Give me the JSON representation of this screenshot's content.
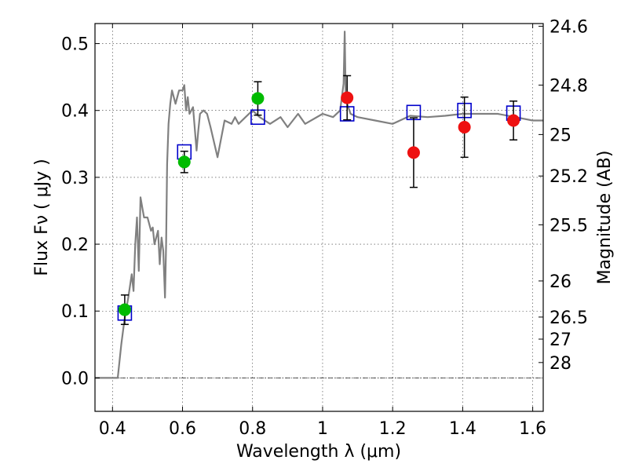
{
  "chart_data": {
    "type": "scatter",
    "title": "",
    "xlabel": "Wavelength  λ (μm)",
    "ylabel": "Flux  Fν  ( μJy )",
    "ylabel_right": "Magnitude (AB)",
    "xlim": [
      0.35,
      1.63
    ],
    "ylim": [
      -0.05,
      0.53
    ],
    "grid": true,
    "x_ticks": [
      0.4,
      0.6,
      0.8,
      1.0,
      1.2,
      1.4,
      1.6
    ],
    "x_tick_labels": [
      "0.4",
      "0.6",
      "0.8",
      "1",
      "1.2",
      "1.4",
      "1.6"
    ],
    "y_ticks": [
      0.0,
      0.1,
      0.2,
      0.3,
      0.4,
      0.5
    ],
    "y_tick_labels": [
      "0.0",
      "0.1",
      "0.2",
      "0.3",
      "0.4",
      "0.5"
    ],
    "right_ticks": [
      {
        "label": "24.6",
        "flux": 0.526
      },
      {
        "label": "24.8",
        "flux": 0.438
      },
      {
        "label": "25",
        "flux": 0.364
      },
      {
        "label": "25.2",
        "flux": 0.302
      },
      {
        "label": "25.5",
        "flux": 0.229
      },
      {
        "label": "26",
        "flux": 0.145
      },
      {
        "label": "26.5",
        "flux": 0.091
      },
      {
        "label": "27",
        "flux": 0.058
      },
      {
        "label": "28",
        "flux": 0.023
      }
    ],
    "series": [
      {
        "kind": "template-spectrum",
        "color": "#808080",
        "x": [
          0.35,
          0.415,
          0.425,
          0.435,
          0.445,
          0.455,
          0.46,
          0.465,
          0.47,
          0.475,
          0.48,
          0.485,
          0.49,
          0.5,
          0.51,
          0.515,
          0.52,
          0.53,
          0.535,
          0.54,
          0.545,
          0.55,
          0.553,
          0.556,
          0.56,
          0.565,
          0.57,
          0.58,
          0.59,
          0.6,
          0.605,
          0.61,
          0.615,
          0.62,
          0.63,
          0.64,
          0.645,
          0.65,
          0.66,
          0.67,
          0.68,
          0.7,
          0.72,
          0.74,
          0.75,
          0.76,
          0.78,
          0.8,
          0.82,
          0.85,
          0.88,
          0.9,
          0.93,
          0.95,
          1.0,
          1.03,
          1.05,
          1.06,
          1.063,
          1.066,
          1.07,
          1.08,
          1.1,
          1.15,
          1.2,
          1.25,
          1.3,
          1.35,
          1.4,
          1.45,
          1.5,
          1.55,
          1.6,
          1.63
        ],
        "y": [
          0.0,
          0.0,
          0.05,
          0.09,
          0.12,
          0.155,
          0.13,
          0.2,
          0.24,
          0.16,
          0.27,
          0.255,
          0.24,
          0.24,
          0.22,
          0.225,
          0.2,
          0.22,
          0.17,
          0.21,
          0.19,
          0.12,
          0.2,
          0.32,
          0.38,
          0.41,
          0.43,
          0.41,
          0.43,
          0.43,
          0.438,
          0.4,
          0.42,
          0.395,
          0.405,
          0.34,
          0.37,
          0.395,
          0.4,
          0.395,
          0.375,
          0.33,
          0.385,
          0.38,
          0.39,
          0.38,
          0.39,
          0.4,
          0.39,
          0.38,
          0.39,
          0.375,
          0.395,
          0.38,
          0.395,
          0.39,
          0.4,
          0.44,
          0.518,
          0.42,
          0.41,
          0.395,
          0.39,
          0.385,
          0.38,
          0.392,
          0.39,
          0.392,
          0.395,
          0.395,
          0.395,
          0.39,
          0.385,
          0.385
        ]
      },
      {
        "kind": "model-band-flux",
        "marker": "open-square",
        "color": "#0000cc",
        "x": [
          0.435,
          0.605,
          0.815,
          1.07,
          1.26,
          1.405,
          1.545
        ],
        "y": [
          0.097,
          0.338,
          0.39,
          0.395,
          0.397,
          0.4,
          0.396
        ]
      },
      {
        "kind": "observed-detection",
        "marker": "filled-circle",
        "color": "#00bb00",
        "x": [
          0.435,
          0.605,
          0.815
        ],
        "y": [
          0.102,
          0.323,
          0.418
        ],
        "yerr": [
          0.022,
          0.016,
          0.025
        ]
      },
      {
        "kind": "observed-low-significance",
        "marker": "filled-circle",
        "color": "#ee1111",
        "x": [
          1.07,
          1.26,
          1.405,
          1.545
        ],
        "y": [
          0.419,
          0.337,
          0.375,
          0.385
        ],
        "yerr": [
          0.033,
          0.052,
          0.045,
          0.029
        ]
      }
    ]
  }
}
